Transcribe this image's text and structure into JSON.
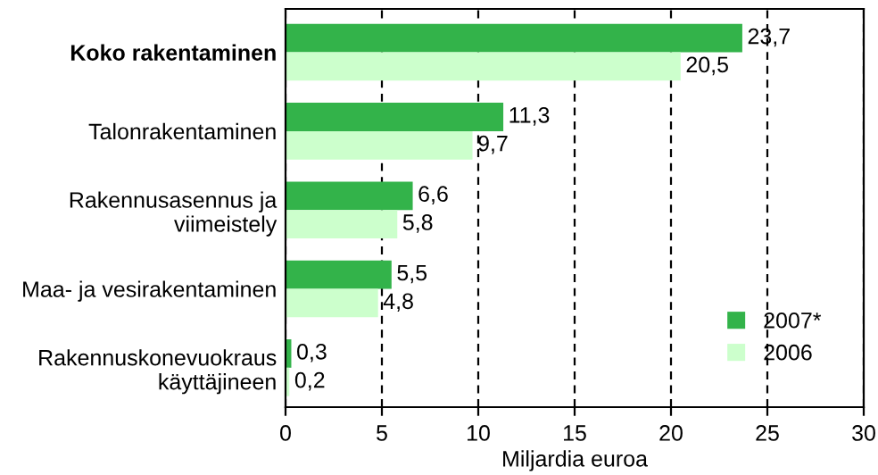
{
  "chart_data": {
    "type": "bar",
    "orientation": "horizontal",
    "categories": [
      "Koko rakentaminen",
      "Talonrakentaminen",
      "Rakennusasennus ja\nviimeistely",
      "Maa- ja vesirakentaminen",
      "Rakennuskonevuokraus\nkäyttäjineen"
    ],
    "series": [
      {
        "name": "2007*",
        "color": "#33b34a",
        "values": [
          23.7,
          11.3,
          6.6,
          5.5,
          0.3
        ],
        "value_labels": [
          "23,7",
          "11,3",
          "6,6",
          "5,5",
          "0,3"
        ]
      },
      {
        "name": "2006",
        "color": "#ccffcc",
        "values": [
          20.5,
          9.7,
          5.8,
          4.8,
          0.2
        ],
        "value_labels": [
          "20,5",
          "9,7",
          "5,8",
          "4,8",
          "0,2"
        ]
      }
    ],
    "xlabel": "Miljardia euroa",
    "xlim": [
      0,
      30
    ],
    "xticks": [
      0,
      5,
      10,
      15,
      20,
      25,
      30
    ],
    "grid": "x",
    "legend": "bottom right"
  }
}
